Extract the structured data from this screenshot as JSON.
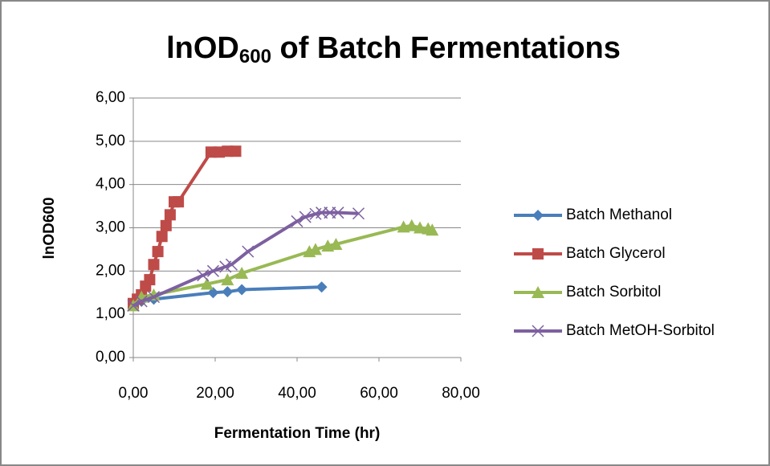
{
  "chart_data": {
    "type": "line",
    "title": [
      "lnOD",
      "600",
      " of Batch Fermentations"
    ],
    "xlabel": "Fermentation Time (hr)",
    "ylabel": "lnOD600",
    "xlim": [
      0,
      80
    ],
    "xticks": [
      {
        "value": 0,
        "label": "0,00"
      },
      {
        "value": 20,
        "label": "20,00"
      },
      {
        "value": 40,
        "label": "40,00"
      },
      {
        "value": 60,
        "label": "60,00"
      },
      {
        "value": 80,
        "label": "80,00"
      }
    ],
    "ylim": [
      0,
      6
    ],
    "yticks": [
      {
        "value": 0,
        "label": "0,00"
      },
      {
        "value": 1,
        "label": "1,00"
      },
      {
        "value": 2,
        "label": "2,00"
      },
      {
        "value": 3,
        "label": "3,00"
      },
      {
        "value": 4,
        "label": "4,00"
      },
      {
        "value": 5,
        "label": "5,00"
      },
      {
        "value": 6,
        "label": "6,00"
      }
    ],
    "grid": true,
    "legend": "right",
    "series": [
      {
        "name": "Batch Methanol",
        "color": "#4a7ebb",
        "marker": "diamond",
        "x": [
          0,
          2,
          5,
          19.5,
          23,
          26.5,
          46
        ],
        "values": [
          1.25,
          1.3,
          1.35,
          1.5,
          1.52,
          1.57,
          1.63
        ]
      },
      {
        "name": "Batch Glycerol",
        "color": "#be4b48",
        "marker": "square",
        "x": [
          0,
          1,
          2,
          3,
          4,
          5,
          6,
          7,
          8,
          9,
          10,
          11,
          19,
          21,
          23,
          25
        ],
        "values": [
          1.25,
          1.35,
          1.45,
          1.65,
          1.8,
          2.15,
          2.45,
          2.8,
          3.05,
          3.3,
          3.6,
          3.6,
          4.75,
          4.75,
          4.77,
          4.77
        ]
      },
      {
        "name": "Batch Sorbitol",
        "color": "#98b954",
        "marker": "triangle",
        "x": [
          0,
          2,
          5,
          18,
          23,
          26.5,
          43,
          44.5,
          47.5,
          49.5,
          66,
          68,
          70,
          72,
          73
        ],
        "values": [
          1.2,
          1.4,
          1.45,
          1.7,
          1.8,
          1.95,
          2.45,
          2.5,
          2.58,
          2.62,
          3.02,
          3.05,
          3.0,
          2.98,
          2.95
        ]
      },
      {
        "name": "Batch MetOH-Sorbitol",
        "color": "#7d60a0",
        "marker": "x",
        "x": [
          0,
          2,
          5,
          17,
          19.5,
          22.5,
          24,
          28,
          40,
          42,
          44.5,
          46,
          48,
          50,
          55
        ],
        "values": [
          1.2,
          1.3,
          1.4,
          1.9,
          2.0,
          2.1,
          2.15,
          2.45,
          3.15,
          3.25,
          3.32,
          3.35,
          3.35,
          3.35,
          3.33
        ]
      }
    ]
  }
}
